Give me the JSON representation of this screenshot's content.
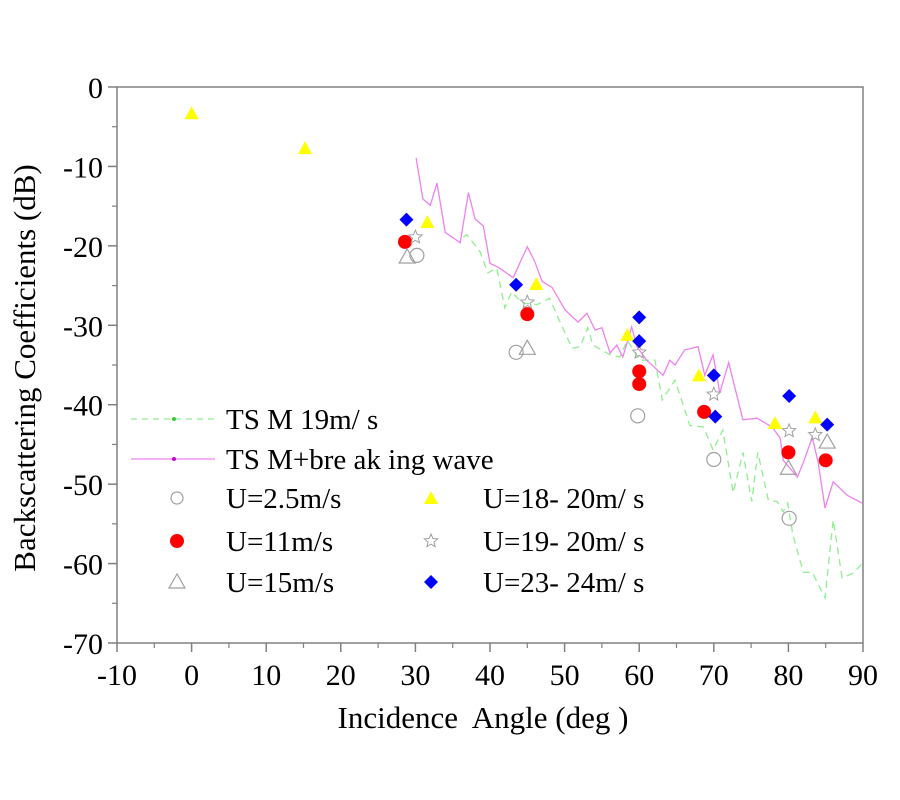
{
  "chart_data": {
    "type": "scatter",
    "title": "",
    "xlabel": "Incidence  Angle (deg )",
    "ylabel": "Backscattering Coefficients (dB)",
    "xlim": [
      -10,
      90
    ],
    "ylim": [
      -70,
      0
    ],
    "xticks": [
      -10,
      0,
      10,
      20,
      30,
      40,
      50,
      60,
      70,
      80,
      90
    ],
    "yticks": [
      0,
      -10,
      -20,
      -30,
      -40,
      -50,
      -60,
      -70
    ],
    "grid": false,
    "legend_position": "lower-left",
    "lines": [
      {
        "name": "TSM 19m/s",
        "legend_label": "TS M 19m/ s",
        "color": "#90ee90",
        "style": "dashed",
        "points": [
          [
            36.4,
            -18.9
          ],
          [
            36.9,
            -18.6
          ],
          [
            38.7,
            -20.8
          ],
          [
            39.7,
            -23.4
          ],
          [
            40.9,
            -22.8
          ],
          [
            42.0,
            -27.8
          ],
          [
            42.9,
            -25.8
          ],
          [
            44.3,
            -27.2
          ],
          [
            46.3,
            -27.4
          ],
          [
            48.0,
            -26.6
          ],
          [
            49.1,
            -29.0
          ],
          [
            51.0,
            -32.9
          ],
          [
            52.1,
            -32.7
          ],
          [
            53.1,
            -30.3
          ],
          [
            53.8,
            -32.5
          ],
          [
            56.1,
            -33.7
          ],
          [
            57.4,
            -34.0
          ],
          [
            58.4,
            -31.9
          ],
          [
            60.1,
            -34.4
          ],
          [
            62.1,
            -34.4
          ],
          [
            63.1,
            -39.4
          ],
          [
            64.8,
            -36.9
          ],
          [
            66.8,
            -42.6
          ],
          [
            68.6,
            -42.8
          ],
          [
            69.9,
            -45.7
          ],
          [
            71.2,
            -43.2
          ],
          [
            72.6,
            -51.1
          ],
          [
            73.9,
            -46.0
          ],
          [
            75.1,
            -52.2
          ],
          [
            75.9,
            -46.0
          ],
          [
            77.3,
            -52.0
          ],
          [
            78.5,
            -52.2
          ],
          [
            79.3,
            -53.5
          ],
          [
            79.9,
            -52.4
          ],
          [
            80.6,
            -56.4
          ],
          [
            82.0,
            -61.1
          ],
          [
            83.2,
            -61.1
          ],
          [
            84.9,
            -64.3
          ],
          [
            86.0,
            -54.5
          ],
          [
            87.2,
            -61.8
          ],
          [
            88.7,
            -61.2
          ],
          [
            90.0,
            -59.9
          ]
        ]
      },
      {
        "name": "TSM+breaking wave",
        "legend_label": "TS M+bre ak ing wave",
        "color": "#ee82ee",
        "style": "solid",
        "points": [
          [
            30.1,
            -8.9
          ],
          [
            31.0,
            -14.1
          ],
          [
            32.0,
            -14.9
          ],
          [
            32.9,
            -12.1
          ],
          [
            34.0,
            -18.3
          ],
          [
            36.0,
            -19.6
          ],
          [
            37.1,
            -13.3
          ],
          [
            38.0,
            -16.6
          ],
          [
            39.1,
            -17.5
          ],
          [
            40.0,
            -22.2
          ],
          [
            41.1,
            -22.7
          ],
          [
            43.1,
            -24.0
          ],
          [
            45.0,
            -20.1
          ],
          [
            46.0,
            -22.0
          ],
          [
            47.0,
            -24.5
          ],
          [
            48.3,
            -25.2
          ],
          [
            50.1,
            -28.1
          ],
          [
            51.8,
            -29.6
          ],
          [
            53.0,
            -28.5
          ],
          [
            54.1,
            -30.6
          ],
          [
            55.0,
            -30.3
          ],
          [
            56.1,
            -33.5
          ],
          [
            57.0,
            -32.5
          ],
          [
            57.8,
            -34.0
          ],
          [
            59.0,
            -30.2
          ],
          [
            59.7,
            -32.7
          ],
          [
            61.0,
            -34.4
          ],
          [
            63.2,
            -36.3
          ],
          [
            64.1,
            -34.4
          ],
          [
            64.8,
            -35.0
          ],
          [
            66.1,
            -33.1
          ],
          [
            67.9,
            -32.7
          ],
          [
            68.8,
            -36.3
          ],
          [
            69.9,
            -33.7
          ],
          [
            70.8,
            -38.5
          ],
          [
            72.0,
            -34.7
          ],
          [
            73.9,
            -41.9
          ],
          [
            75.8,
            -41.7
          ],
          [
            77.8,
            -42.8
          ],
          [
            78.9,
            -44.2
          ],
          [
            79.3,
            -47.0
          ],
          [
            81.2,
            -49.1
          ],
          [
            82.0,
            -47.3
          ],
          [
            83.2,
            -44.1
          ],
          [
            84.0,
            -47.3
          ],
          [
            84.9,
            -53.0
          ],
          [
            86.0,
            -49.7
          ],
          [
            87.9,
            -51.4
          ],
          [
            89.9,
            -52.4
          ]
        ]
      }
    ],
    "series": [
      {
        "name": "U=2.5m/s",
        "legend_label": "U=2.5m/s",
        "marker": "circle-open",
        "color": "#a0a0a0",
        "points": [
          [
            30.2,
            -21.2
          ],
          [
            43.5,
            -33.4
          ],
          [
            59.8,
            -41.4
          ],
          [
            70.0,
            -46.9
          ],
          [
            80.1,
            -54.3
          ]
        ]
      },
      {
        "name": "U=11m/s",
        "legend_label": "U=11m/s",
        "marker": "circle-filled",
        "color": "#ff0000",
        "points": [
          [
            28.6,
            -19.5
          ],
          [
            45.0,
            -28.6
          ],
          [
            60.0,
            -35.8
          ],
          [
            60.0,
            -37.4
          ],
          [
            68.7,
            -40.9
          ],
          [
            80.0,
            -46.0
          ],
          [
            85.0,
            -47.0
          ]
        ]
      },
      {
        "name": "U=15m/s",
        "legend_label": "U=15m/s",
        "marker": "triangle-open",
        "color": "#a0a0a0",
        "points": [
          [
            28.9,
            -21.4
          ],
          [
            45.0,
            -32.9
          ],
          [
            80.0,
            -48.0
          ],
          [
            85.2,
            -44.7
          ]
        ]
      },
      {
        "name": "U=18-20m/s",
        "legend_label": "U=18- 20m/ s",
        "marker": "triangle-filled",
        "color": "#ffff00",
        "points": [
          [
            0.0,
            -3.3
          ],
          [
            15.2,
            -7.7
          ],
          [
            31.6,
            -17.0
          ],
          [
            46.2,
            -24.8
          ],
          [
            58.4,
            -31.2
          ],
          [
            68.0,
            -36.3
          ],
          [
            78.2,
            -42.3
          ],
          [
            83.6,
            -41.6
          ]
        ]
      },
      {
        "name": "U=19-20m/s",
        "legend_label": "U=19- 20m/ s",
        "marker": "star-open",
        "color": "#a0a0a0",
        "points": [
          [
            30.0,
            -18.9
          ],
          [
            45.0,
            -27.1
          ],
          [
            60.0,
            -33.4
          ],
          [
            70.0,
            -38.7
          ],
          [
            80.1,
            -43.3
          ],
          [
            83.6,
            -43.8
          ]
        ]
      },
      {
        "name": "U=23-24m/s",
        "legend_label": "U=23- 24m/ s",
        "marker": "diamond-filled",
        "color": "#0000ff",
        "points": [
          [
            28.8,
            -16.7
          ],
          [
            43.5,
            -24.9
          ],
          [
            60.0,
            -29.0
          ],
          [
            60.0,
            -32.0
          ],
          [
            70.0,
            -36.3
          ],
          [
            70.2,
            -41.5
          ],
          [
            80.1,
            -38.9
          ],
          [
            85.2,
            -42.5
          ]
        ]
      }
    ]
  }
}
